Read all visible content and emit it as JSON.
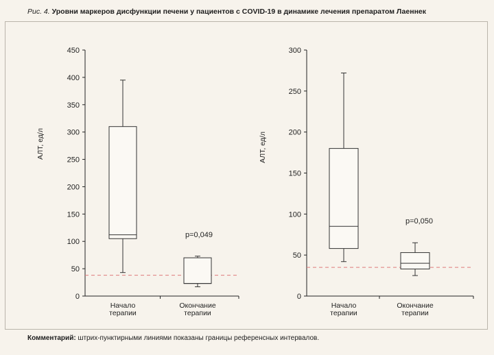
{
  "figure": {
    "label": "Рис. 4.",
    "title": "Уровни маркеров дисфункции печени у пациентов с COVID-19 в динамике лечения препаратом Лаеннек"
  },
  "comment": {
    "lead": "Комментарий:",
    "text": "штрих-пунктирными линиями показаны границы референсных интервалов."
  },
  "colors": {
    "reference_line": "#e07a7a",
    "axis": "#222222",
    "box": "#333333"
  },
  "chart_data": [
    {
      "type": "box",
      "ylabel": "АЛТ, ед/л",
      "ylim": [
        0,
        450
      ],
      "yticks": [
        0,
        50,
        100,
        150,
        200,
        250,
        300,
        350,
        400,
        450
      ],
      "reference_line": 38,
      "annotation": "p=0,049",
      "categories": [
        {
          "line1": "Начало",
          "line2": "терапии",
          "whisker_low": 43,
          "q1": 105,
          "median": 112,
          "q3": 310,
          "whisker_high": 395
        },
        {
          "line1": "Окончание",
          "line2": "терапии",
          "whisker_low": 17,
          "q1": 23,
          "median": 23,
          "q3": 70,
          "whisker_high": 73
        }
      ]
    },
    {
      "type": "box",
      "ylabel": "АЛТ, ед/л",
      "ylim": [
        0,
        300
      ],
      "yticks": [
        0,
        50,
        100,
        150,
        200,
        250,
        300
      ],
      "reference_line": 35,
      "annotation": "p=0,050",
      "categories": [
        {
          "line1": "Начало",
          "line2": "терапии",
          "whisker_low": 42,
          "q1": 58,
          "median": 85,
          "q3": 180,
          "whisker_high": 272
        },
        {
          "line1": "Окончание",
          "line2": "терапии",
          "whisker_low": 25,
          "q1": 33,
          "median": 40,
          "q3": 53,
          "whisker_high": 65
        }
      ]
    }
  ]
}
